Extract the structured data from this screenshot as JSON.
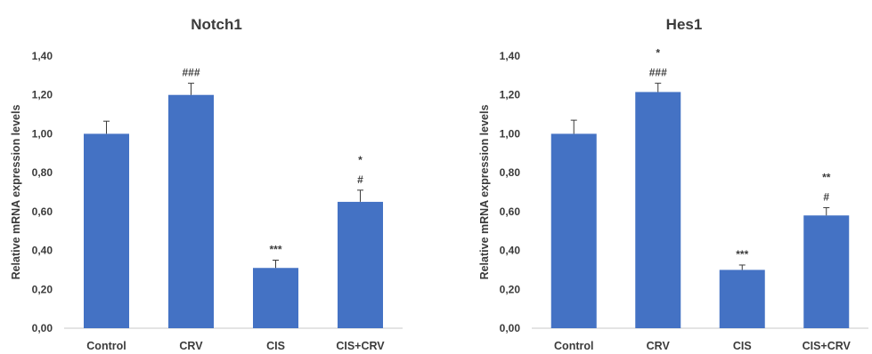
{
  "chart_data": [
    {
      "type": "bar",
      "title": "Notch1",
      "ylabel": "Relative mRNA expression levels",
      "xlabel": "",
      "categories": [
        "Control",
        "CRV",
        "CIS",
        "CIS+CRV"
      ],
      "values": [
        1.0,
        1.2,
        0.31,
        0.65
      ],
      "errors": [
        0.065,
        0.06,
        0.04,
        0.06
      ],
      "annotations": [
        [],
        [
          "###"
        ],
        [
          "***"
        ],
        [
          "#",
          "*"
        ]
      ],
      "ylim": [
        0,
        1.4
      ],
      "yticks": [
        "0,00",
        "0,20",
        "0,40",
        "0,60",
        "0,80",
        "1,00",
        "1,20",
        "1,40"
      ],
      "grid": false,
      "legend": "none",
      "bar_color": "#4472c4"
    },
    {
      "type": "bar",
      "title": "Hes1",
      "ylabel": "Relative mRNA expression levels",
      "xlabel": "",
      "categories": [
        "Control",
        "CRV",
        "CIS",
        "CIS+CRV"
      ],
      "values": [
        1.0,
        1.215,
        0.3,
        0.58
      ],
      "errors": [
        0.07,
        0.045,
        0.025,
        0.04
      ],
      "annotations": [
        [],
        [
          "###",
          "*"
        ],
        [
          "***"
        ],
        [
          "#",
          "**"
        ]
      ],
      "ylim": [
        0,
        1.4
      ],
      "yticks": [
        "0,00",
        "0,20",
        "0,40",
        "0,60",
        "0,80",
        "1,00",
        "1,20",
        "1,40"
      ],
      "grid": false,
      "legend": "none",
      "bar_color": "#4472c4"
    }
  ]
}
